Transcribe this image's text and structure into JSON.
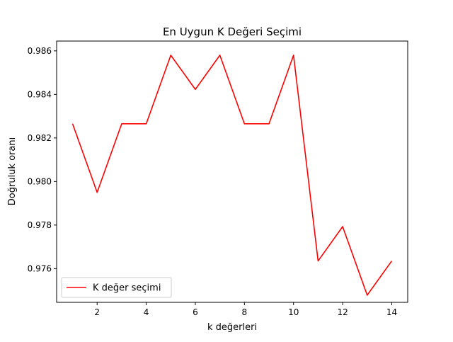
{
  "chart_data": {
    "type": "line",
    "title": "En Uygun K Değeri Seçimi",
    "xlabel": "k değerleri",
    "ylabel": "Doğruluk oranı",
    "xlim": [
      0.35,
      14.65
    ],
    "ylim": [
      0.97445,
      0.98645
    ],
    "xticks": [
      2,
      4,
      6,
      8,
      10,
      12,
      14
    ],
    "xtick_labels": [
      "2",
      "4",
      "6",
      "8",
      "10",
      "12",
      "14"
    ],
    "yticks": [
      0.976,
      0.978,
      0.98,
      0.982,
      0.984,
      0.986
    ],
    "ytick_labels": [
      "0.976",
      "0.978",
      "0.980",
      "0.982",
      "0.984",
      "0.986"
    ],
    "grid": false,
    "legend_position": "lower-left",
    "series": [
      {
        "name": "K değer seçimi",
        "color": "#ff0000",
        "x": [
          1,
          2,
          3,
          4,
          5,
          6,
          7,
          8,
          9,
          10,
          11,
          12,
          13,
          14
        ],
        "values": [
          0.98265,
          0.9795,
          0.98265,
          0.98265,
          0.9858,
          0.98423,
          0.9858,
          0.98265,
          0.98265,
          0.9858,
          0.97635,
          0.97793,
          0.97478,
          0.97635
        ]
      }
    ]
  }
}
